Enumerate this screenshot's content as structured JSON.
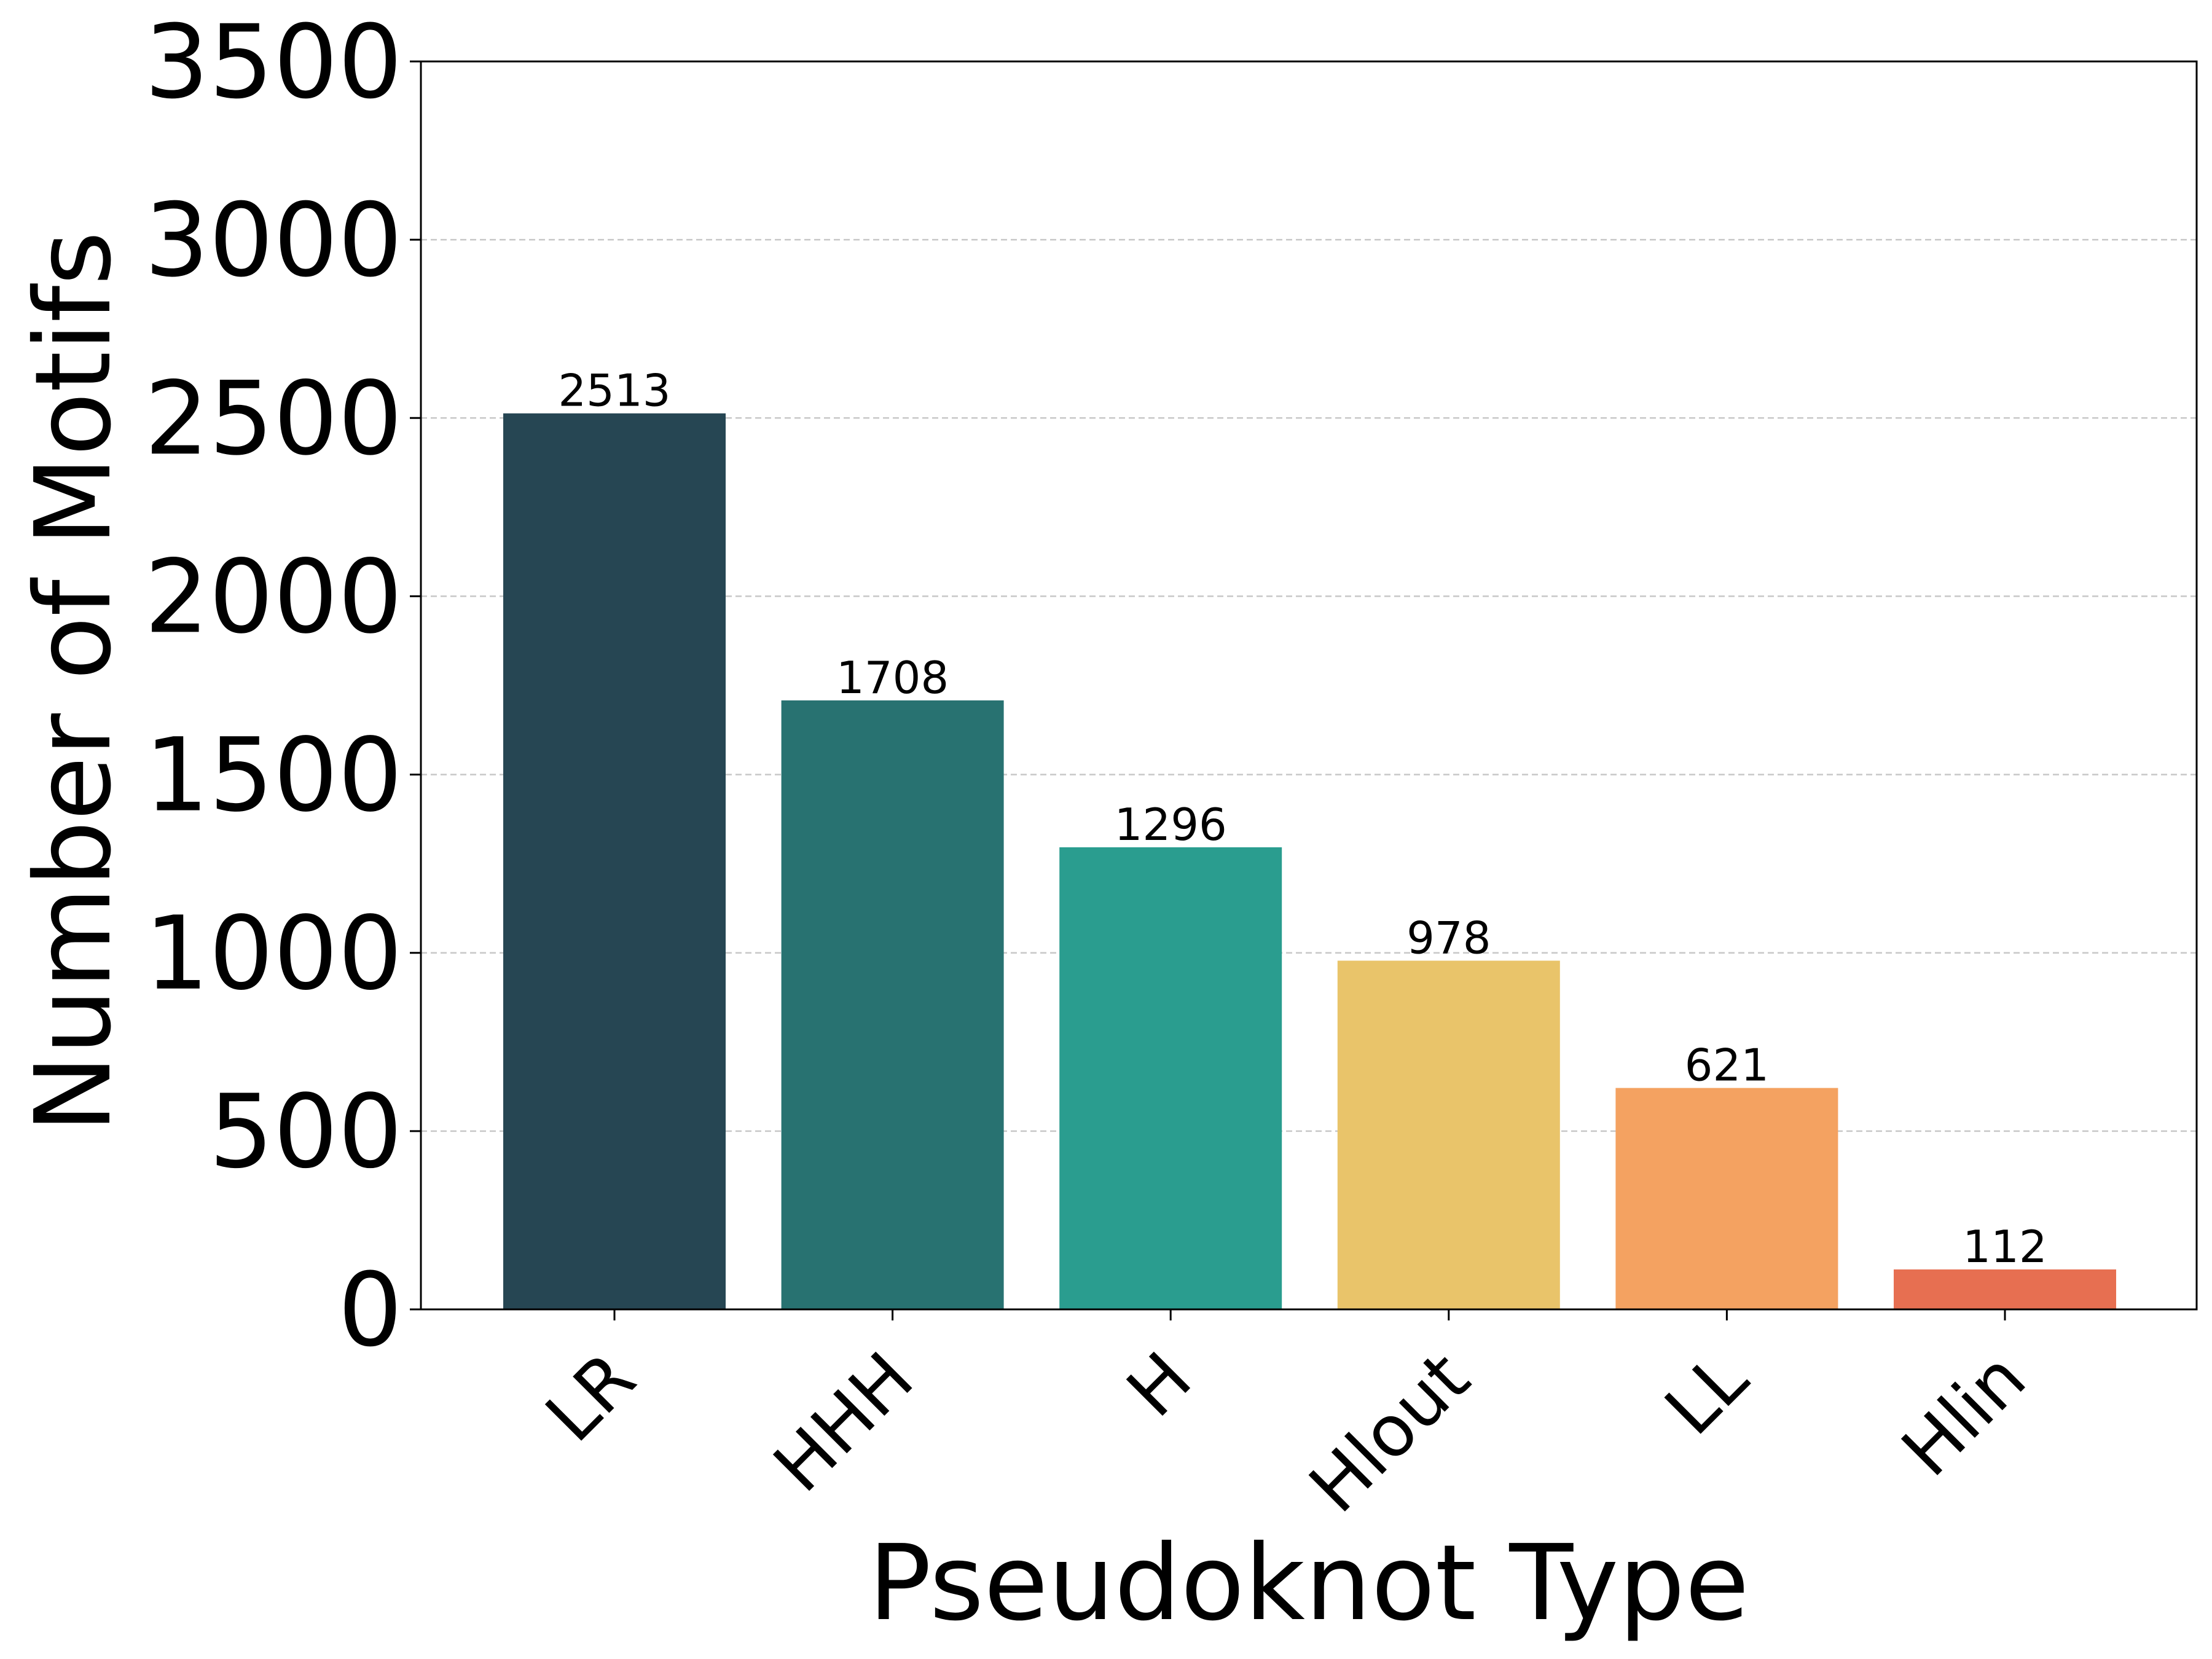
{
  "chart_data": {
    "type": "bar",
    "title": "",
    "xlabel": "Pseudoknot Type",
    "ylabel": "Number of Motifs",
    "categories": [
      "LR",
      "HHH",
      "H",
      "Hlout",
      "LL",
      "Hlin"
    ],
    "values": [
      2513,
      1708,
      1296,
      978,
      621,
      112
    ],
    "data_labels": [
      "2513",
      "1708",
      "1296",
      "978",
      "621",
      "112"
    ],
    "colors": [
      "#264653",
      "#287271",
      "#2a9d8f",
      "#e9c46a",
      "#f4a261",
      "#e76f51"
    ],
    "ylim": [
      0,
      3500
    ],
    "yticks": [
      0,
      500,
      1000,
      1500,
      2000,
      2500,
      3000,
      3500
    ],
    "ytick_labels": [
      "0",
      "500",
      "1000",
      "1500",
      "2000",
      "2500",
      "3000",
      "3500"
    ],
    "grid": {
      "y": true,
      "style": "dashed",
      "color": "#c8c8c8"
    },
    "legend": "none"
  }
}
